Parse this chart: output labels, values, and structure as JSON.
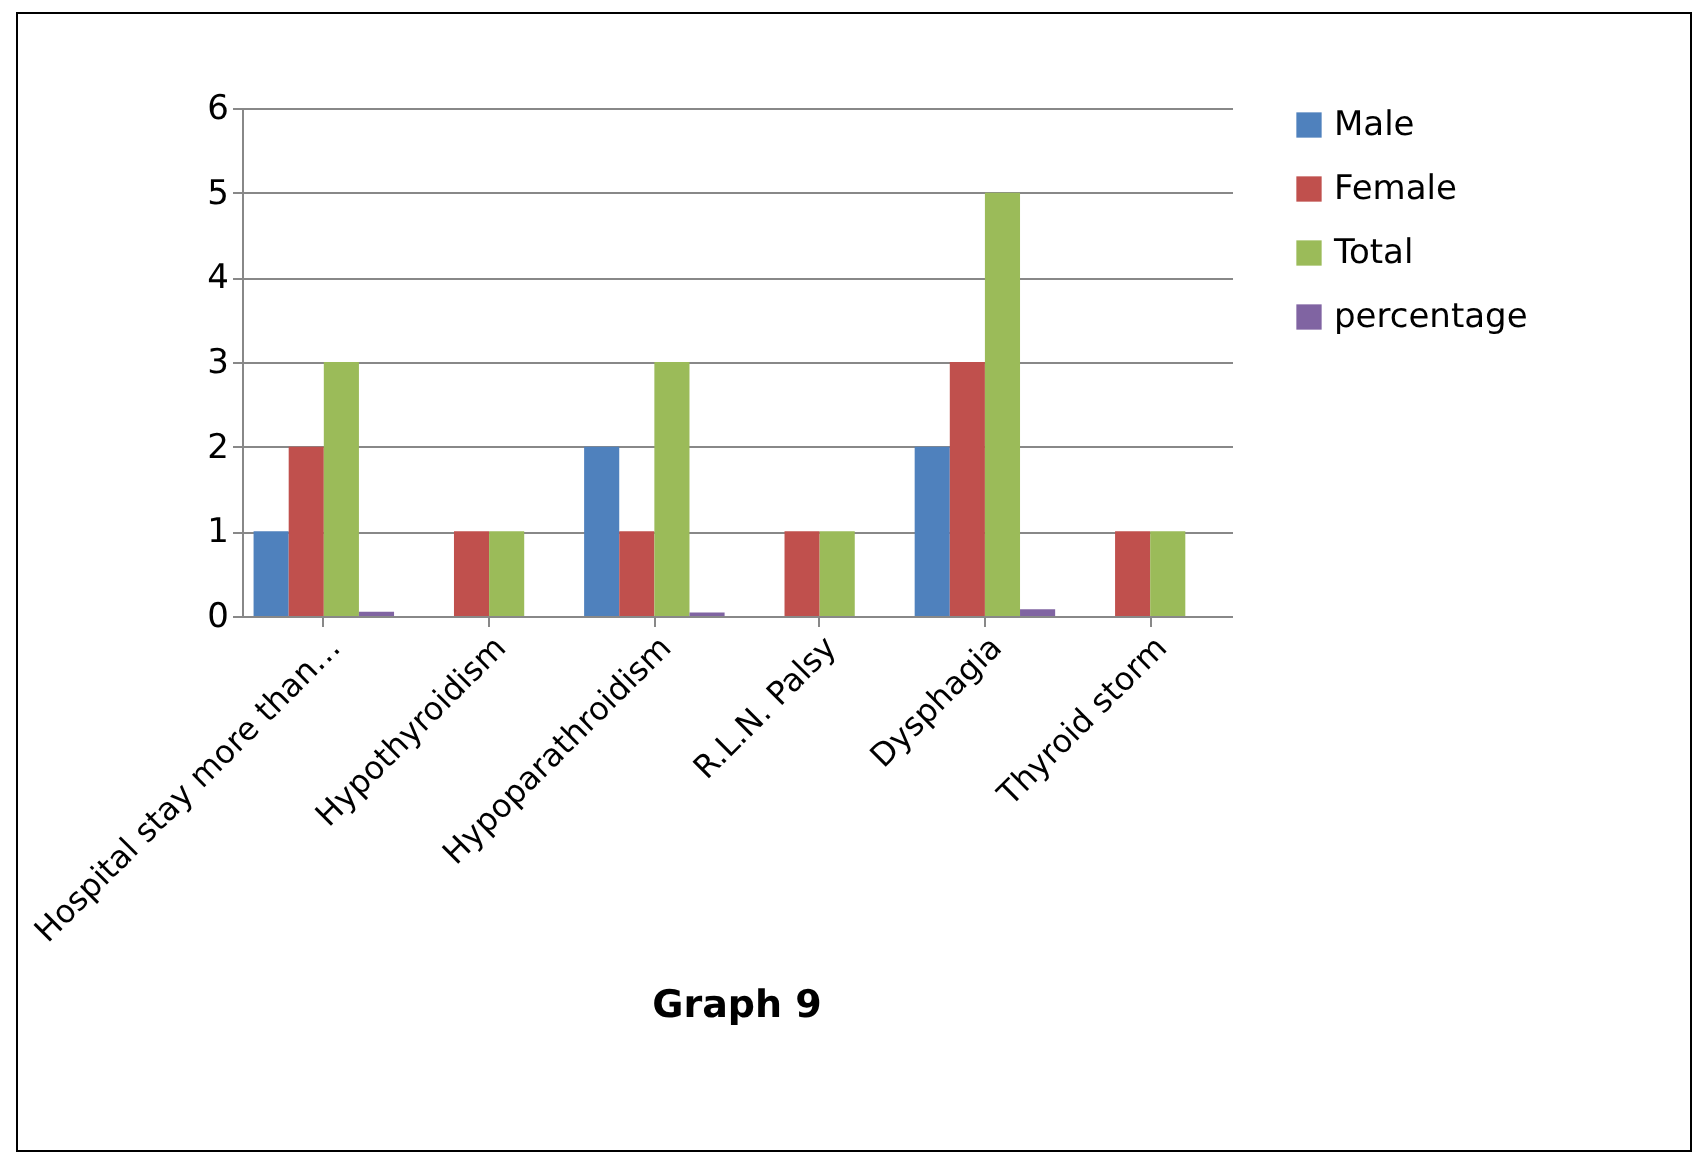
{
  "chart_data": {
    "type": "bar",
    "title": "Graph 9",
    "categories": [
      "Hospital stay more than…",
      "Hypothyroidism",
      "Hypoparathroidism",
      "R.L.N. Palsy",
      "Dysphagia",
      "Thyroid storm"
    ],
    "series": [
      {
        "name": "Male",
        "color": "#4f81bd",
        "values": [
          1,
          0,
          2,
          0,
          2,
          0
        ]
      },
      {
        "name": "Female",
        "color": "#c0504d",
        "values": [
          2,
          1,
          1,
          1,
          3,
          1
        ]
      },
      {
        "name": "Total",
        "color": "#9bbb59",
        "values": [
          3,
          1,
          3,
          1,
          5,
          1
        ]
      },
      {
        "name": "percentage",
        "color": "#8064a2",
        "values": [
          0.05,
          null,
          0.04,
          null,
          0.08,
          null
        ]
      }
    ],
    "ylim": [
      0,
      6
    ],
    "yticks": [
      0,
      1,
      2,
      3,
      4,
      5,
      6
    ],
    "grid": "y",
    "legend": "right"
  }
}
